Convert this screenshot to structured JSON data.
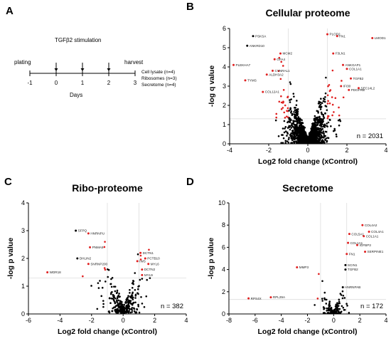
{
  "timeline": {
    "panel_label": "A",
    "stimulation_label": "TGFβ2 stimulation",
    "plating_label": "plating",
    "harvest_label": "harvest",
    "ticks": [
      "-1",
      "0",
      "1",
      "2",
      "3"
    ],
    "days_label": "Days",
    "samples": [
      "Cell lysate (n=4)",
      "Ribosomes (n=3)",
      "Secretome (n=4)"
    ]
  },
  "chart_data": [
    {
      "panel": "B",
      "type": "scatter",
      "title": "Cellular proteome",
      "xlabel": "Log2 fold change (xControl)",
      "ylabel": "-log q value",
      "xlim": [
        -4,
        4
      ],
      "ylim": [
        0,
        6
      ],
      "xticks": [
        "-4",
        "-2",
        "0",
        "2",
        "4"
      ],
      "yticks": [
        "0",
        "1",
        "2",
        "3",
        "4",
        "5",
        "6"
      ],
      "threshold_x": [
        -1,
        1
      ],
      "threshold_y": 1.3,
      "n_label": "n = 2031",
      "n_points": 1400,
      "spread": 0.5,
      "cloud_ymax": 5.0,
      "seed": 11,
      "sig_color": "#e02020",
      "dot_color": "#000000",
      "labeled_points": [
        {
          "label": "PSKSA",
          "x": -2.8,
          "y": 5.6,
          "color": "#000"
        },
        {
          "label": "ANKRD10",
          "x": -3.1,
          "y": 5.1,
          "color": "#000"
        },
        {
          "label": "PLEKHA7",
          "x": -3.8,
          "y": 4.1,
          "color": "#e02020"
        },
        {
          "label": "TYMS",
          "x": -3.2,
          "y": 3.3,
          "color": "#e02020"
        },
        {
          "label": "MCM2",
          "x": -1.4,
          "y": 4.7,
          "color": "#e02020"
        },
        {
          "label": "GFA4",
          "x": -1.7,
          "y": 4.4,
          "color": "#e02020"
        },
        {
          "label": "CYNRAL1",
          "x": -1.8,
          "y": 3.8,
          "color": "#e02020"
        },
        {
          "label": "ALDH3A2",
          "x": -2.1,
          "y": 3.6,
          "color": "#e02020"
        },
        {
          "label": "COL12A1",
          "x": -2.3,
          "y": 2.7,
          "color": "#e02020"
        },
        {
          "label": "PLOD2",
          "x": 1.0,
          "y": 5.7,
          "color": "#e02020"
        },
        {
          "label": "FN1",
          "x": 1.5,
          "y": 5.6,
          "color": "#e02020"
        },
        {
          "label": "LMOD1",
          "x": 3.3,
          "y": 5.5,
          "color": "#e02020"
        },
        {
          "label": "F3LN1",
          "x": 1.3,
          "y": 4.7,
          "color": "#e02020"
        },
        {
          "label": "ANKGAP1",
          "x": 1.8,
          "y": 4.1,
          "color": "#e02020"
        },
        {
          "label": "COL1A1",
          "x": 2.0,
          "y": 3.9,
          "color": "#e02020"
        },
        {
          "label": "TGFB2",
          "x": 2.2,
          "y": 3.4,
          "color": "#e02020"
        },
        {
          "label": "IFI30",
          "x": 1.7,
          "y": 3.0,
          "color": "#e02020"
        },
        {
          "label": "SEC14L2",
          "x": 2.6,
          "y": 2.9,
          "color": "#e02020"
        },
        {
          "label": "PDGFRB",
          "x": 2.1,
          "y": 2.8,
          "color": "#e02020"
        }
      ]
    },
    {
      "panel": "C",
      "type": "scatter",
      "title": "Ribo-proteome",
      "xlabel": "Log2 fold change (xControl)",
      "ylabel": "-log p value",
      "xlim": [
        -6,
        4
      ],
      "ylim": [
        0,
        4
      ],
      "xticks": [
        "-6",
        "-4",
        "-2",
        "0",
        "2",
        "4"
      ],
      "yticks": [
        "0",
        "1",
        "2",
        "3",
        "4"
      ],
      "threshold_x": [
        -1,
        1
      ],
      "threshold_y": 1.3,
      "n_label": "n = 382",
      "n_points": 300,
      "spread": 0.55,
      "cloud_ymax": 2.9,
      "seed": 23,
      "sig_color": "#e02020",
      "dot_color": "#000000",
      "labeled_points": [
        {
          "label": "SFPQ",
          "x": -3.0,
          "y": 3.0,
          "color": "#000"
        },
        {
          "label": "HNRNPU",
          "x": -2.2,
          "y": 2.9,
          "color": "#e02020"
        },
        {
          "label": "PNMA5",
          "x": -2.1,
          "y": 2.4,
          "color": "#e02020"
        },
        {
          "label": "DHLIN2",
          "x": -2.9,
          "y": 2.0,
          "color": "#000"
        },
        {
          "label": "SNRNP200",
          "x": -2.2,
          "y": 1.8,
          "color": "#e02020"
        },
        {
          "label": "WDR18",
          "x": -4.8,
          "y": 1.5,
          "color": "#e02020"
        },
        {
          "label": "DCTN1",
          "x": 1.1,
          "y": 2.2,
          "color": "#e02020"
        },
        {
          "label": "PCTB10",
          "x": 1.4,
          "y": 2.0,
          "color": "#e02020"
        },
        {
          "label": "IWS",
          "x": 0.9,
          "y": 1.9,
          "color": "#e02020"
        },
        {
          "label": "MYL6",
          "x": 1.6,
          "y": 1.8,
          "color": "#e02020"
        },
        {
          "label": "DCTN2",
          "x": 1.2,
          "y": 1.6,
          "color": "#e02020"
        },
        {
          "label": "MYL9",
          "x": 1.2,
          "y": 1.4,
          "color": "#e02020"
        }
      ]
    },
    {
      "panel": "D",
      "type": "scatter",
      "title": "Secretome",
      "xlabel": "Log2 fold change (xControl)",
      "ylabel": "-log p value",
      "xlim": [
        -8,
        4
      ],
      "ylim": [
        0,
        10
      ],
      "xticks": [
        "-8",
        "-6",
        "-4",
        "-2",
        "0",
        "2",
        "4"
      ],
      "yticks": [
        "0",
        "2",
        "4",
        "6",
        "8",
        "10"
      ],
      "threshold_x": [
        -1,
        1
      ],
      "threshold_y": 1.3,
      "n_label": "n = 172",
      "n_points": 140,
      "spread": 0.5,
      "cloud_ymax": 5.5,
      "seed": 37,
      "sig_color": "#e02020",
      "dot_color": "#000000",
      "labeled_points": [
        {
          "label": "COL4A2",
          "x": 2.2,
          "y": 8.0,
          "color": "#e02020"
        },
        {
          "label": "COL5A1",
          "x": 1.2,
          "y": 7.2,
          "color": "#e02020"
        },
        {
          "label": "COL4A1",
          "x": 2.7,
          "y": 7.4,
          "color": "#e02020"
        },
        {
          "label": "COL1A1",
          "x": 2.3,
          "y": 7.0,
          "color": "#e02020"
        },
        {
          "label": "COL1A1",
          "x": 1.1,
          "y": 6.4,
          "color": "#e02020"
        },
        {
          "label": "IGFBP3",
          "x": 1.8,
          "y": 6.2,
          "color": "#e02020"
        },
        {
          "label": "SERPINE1",
          "x": 2.4,
          "y": 5.6,
          "color": "#e02020"
        },
        {
          "label": "FN1",
          "x": 1.0,
          "y": 5.4,
          "color": "#e02020"
        },
        {
          "label": "SCIN1",
          "x": 0.9,
          "y": 4.4,
          "color": "#000"
        },
        {
          "label": "TGFB2",
          "x": 0.9,
          "y": 4.0,
          "color": "#000"
        },
        {
          "label": "MMP3",
          "x": -2.8,
          "y": 4.2,
          "color": "#e02020"
        },
        {
          "label": "HNRNPAB",
          "x": 0.7,
          "y": 2.4,
          "color": "#000"
        },
        {
          "label": "RPS4X",
          "x": -6.5,
          "y": 1.4,
          "color": "#e02020"
        },
        {
          "label": "RPL29A",
          "x": -4.8,
          "y": 1.5,
          "color": "#e02020"
        }
      ]
    }
  ]
}
